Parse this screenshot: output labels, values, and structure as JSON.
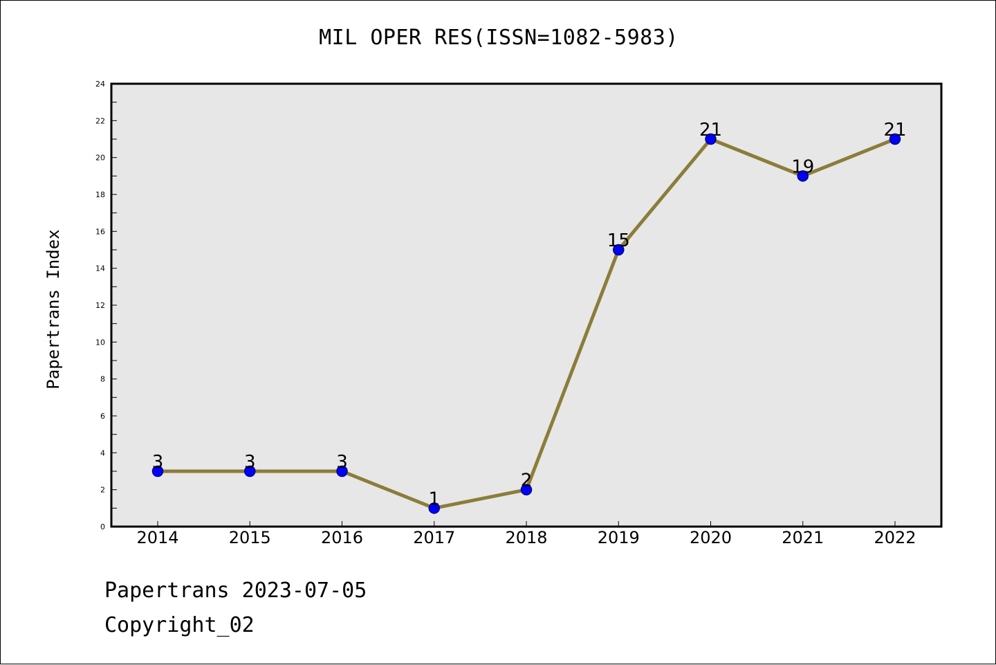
{
  "chart_data": {
    "type": "line",
    "title": "MIL OPER RES(ISSN=1082-5983)",
    "xlabel": "",
    "ylabel": "Papertrans Index",
    "categories": [
      "2014",
      "2015",
      "2016",
      "2017",
      "2018",
      "2019",
      "2020",
      "2021",
      "2022"
    ],
    "series": [
      {
        "values": [
          3,
          3,
          3,
          1,
          2,
          15,
          21,
          19,
          21
        ]
      }
    ],
    "ylim": [
      0,
      24
    ],
    "yticks": [
      0,
      2,
      4,
      6,
      8,
      10,
      12,
      14,
      16,
      18,
      20,
      22,
      24
    ],
    "grid": false,
    "data_labels": true,
    "colors": {
      "plot_background": "#e7e7e7",
      "line": "#8b7d3a",
      "marker_fill": "#0000ff",
      "marker_stroke": "#000080"
    }
  },
  "footer": {
    "date_line": "Papertrans 2023-07-05",
    "copyright_line": "Copyright_02"
  }
}
